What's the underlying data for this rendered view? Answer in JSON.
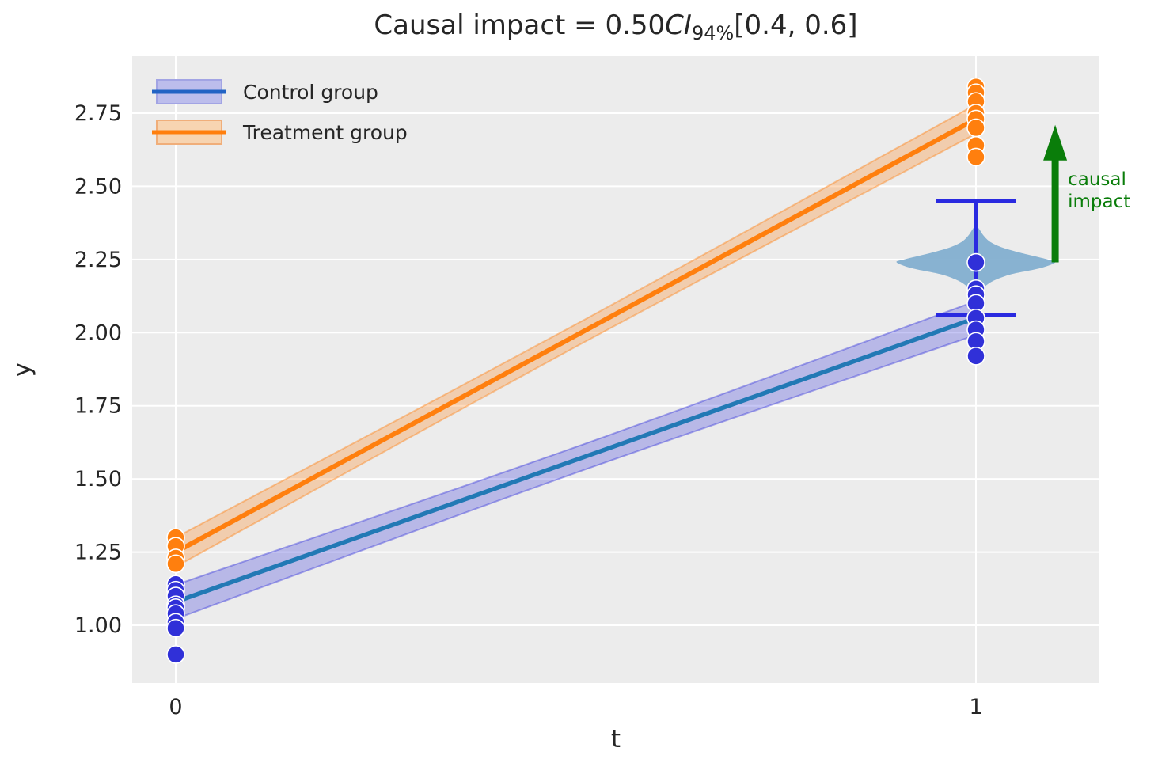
{
  "title": {
    "prefix": "Causal impact = 0.50",
    "ci_label": "CI",
    "ci_sub": "94%",
    "interval": "[0.4, 0.6]"
  },
  "colors": {
    "axes_bg": "#ececec",
    "grid": "#ffffff",
    "text": "#262626",
    "control_line": "#2279b5",
    "control_band_fill": "rgba(50,50,220,0.28)",
    "control_band_edge": "rgba(50,50,220,0.42)",
    "treatment_line": "#ff7f0e",
    "treatment_band_fill": "rgba(255,127,14,0.28)",
    "treatment_band_edge": "rgba(255,127,14,0.42)",
    "scatter_blue": "#3030d8",
    "scatter_orange": "#ff7f0e",
    "violin": "#7fadce",
    "errorbar": "#2a2ae0",
    "green": "#0a7d0a"
  },
  "legend": {
    "items": [
      {
        "label": "Control group",
        "line_color": "#2263c4",
        "band_fill": "#bcbdec",
        "band_edge": "#a2a4e4"
      },
      {
        "label": "Treatment group",
        "line_color": "#ff7f0e",
        "band_fill": "#f7d4b1",
        "band_edge": "#f0ae7a"
      }
    ]
  },
  "chart_data": {
    "type": "scatter",
    "title": "Causal impact = 0.50 CI_94% [0.4, 0.6]",
    "xlabel": "t",
    "ylabel": "y",
    "xlim": [
      -0.054,
      1.154
    ],
    "ylim": [
      0.8,
      2.945
    ],
    "grid": true,
    "legend_position": "upper left",
    "x_ticks": [
      {
        "value": 0,
        "label": "0"
      },
      {
        "value": 1,
        "label": "1"
      }
    ],
    "y_ticks": [
      {
        "value": 1.0,
        "label": "1.00"
      },
      {
        "value": 1.25,
        "label": "1.25"
      },
      {
        "value": 1.5,
        "label": "1.50"
      },
      {
        "value": 1.75,
        "label": "1.75"
      },
      {
        "value": 2.0,
        "label": "2.00"
      },
      {
        "value": 2.25,
        "label": "2.25"
      },
      {
        "value": 2.5,
        "label": "2.50"
      },
      {
        "value": 2.75,
        "label": "2.75"
      }
    ],
    "regression_lines": [
      {
        "name": "Control group",
        "x": [
          0,
          1
        ],
        "y": [
          1.08,
          2.05
        ],
        "line_color": "#2279b5",
        "line_width": 5.5,
        "band_fill": "rgba(50,50,220,0.28)",
        "band_edge": "rgba(50,50,220,0.42)",
        "band_halfwidth": [
          0.058,
          0.044,
          0.058
        ]
      },
      {
        "name": "Treatment group",
        "x": [
          0,
          1
        ],
        "y": [
          1.25,
          2.73
        ],
        "line_color": "#ff7f0e",
        "line_width": 6,
        "band_fill": "rgba(255,127,14,0.28)",
        "band_edge": "rgba(255,127,14,0.42)",
        "band_halfwidth": [
          0.05,
          0.038,
          0.05
        ]
      }
    ],
    "scatter": [
      {
        "name": "control-t0",
        "x": 0,
        "color": "#3030d8",
        "values": [
          1.23,
          1.14,
          1.12,
          1.1,
          1.07,
          1.06,
          1.04,
          1.01,
          0.99,
          0.9
        ]
      },
      {
        "name": "treatment-t0",
        "x": 0,
        "color": "#ff7f0e",
        "values": [
          1.3,
          1.27,
          1.23,
          1.21
        ]
      },
      {
        "name": "control-t1",
        "x": 1,
        "color": "#3030d8",
        "values": [
          2.24,
          2.15,
          2.13,
          2.1,
          2.05,
          2.01,
          1.97,
          1.92
        ]
      },
      {
        "name": "treatment-t1",
        "x": 1,
        "color": "#ff7f0e",
        "values": [
          2.84,
          2.82,
          2.79,
          2.75,
          2.73,
          2.7,
          2.64,
          2.6
        ]
      }
    ],
    "counterfactual_errorbar": {
      "x": 1,
      "center": 2.25,
      "lo": 2.06,
      "hi": 2.45,
      "cap_halfwidth": 0.05,
      "color": "#2a2ae0",
      "line_width": 5
    },
    "violin": {
      "x": 1,
      "color": "#7fadce",
      "profile": [
        [
          2.37,
          0.0
        ],
        [
          2.35,
          0.005
        ],
        [
          2.33,
          0.01
        ],
        [
          2.31,
          0.018
        ],
        [
          2.29,
          0.034
        ],
        [
          2.27,
          0.06
        ],
        [
          2.25,
          0.09
        ],
        [
          2.24,
          0.099
        ],
        [
          2.22,
          0.08
        ],
        [
          2.2,
          0.045
        ],
        [
          2.18,
          0.024
        ],
        [
          2.16,
          0.012
        ],
        [
          2.14,
          0.005
        ],
        [
          2.12,
          0.0
        ]
      ]
    },
    "annotation_arrow": {
      "x": 1.099,
      "y_from": 2.24,
      "y_to": 2.71,
      "color": "#0a7d0a",
      "label_lines": [
        "causal",
        "impact"
      ]
    }
  }
}
